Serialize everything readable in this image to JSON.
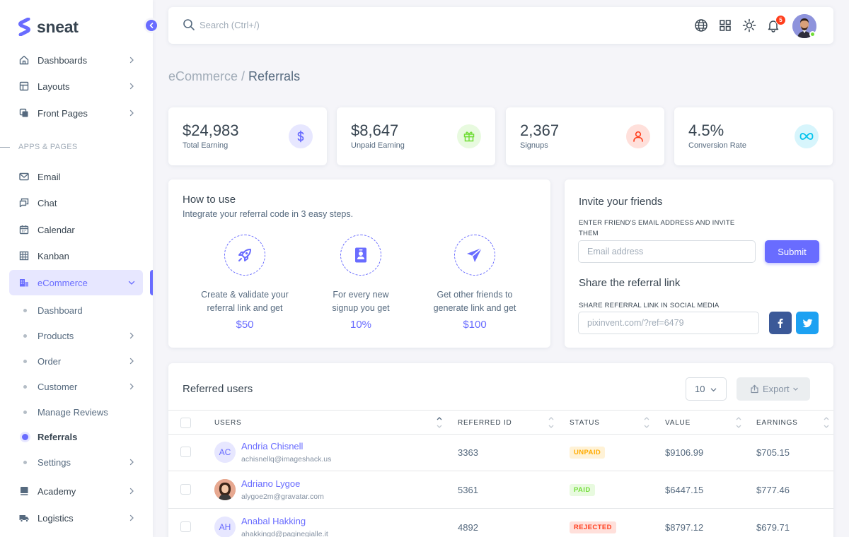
{
  "brand": {
    "name": "sneat"
  },
  "sidebar": {
    "top_items": [
      {
        "label": "Dashboards",
        "icon": "home-icon"
      },
      {
        "label": "Layouts",
        "icon": "layout-icon"
      },
      {
        "label": "Front Pages",
        "icon": "copy-icon"
      }
    ],
    "section_header": "APPS & PAGES",
    "app_items": [
      {
        "label": "Email",
        "icon": "mail-icon"
      },
      {
        "label": "Chat",
        "icon": "chat-icon"
      },
      {
        "label": "Calendar",
        "icon": "calendar-icon"
      },
      {
        "label": "Kanban",
        "icon": "grid-icon"
      }
    ],
    "ecommerce": {
      "label": "eCommerce",
      "icon": "store-icon"
    },
    "ecommerce_sub": [
      {
        "label": "Dashboard"
      },
      {
        "label": "Products"
      },
      {
        "label": "Order"
      },
      {
        "label": "Customer"
      },
      {
        "label": "Manage Reviews"
      },
      {
        "label": "Referrals"
      },
      {
        "label": "Settings"
      }
    ],
    "bottom_items": [
      {
        "label": "Academy",
        "icon": "book-icon"
      },
      {
        "label": "Logistics",
        "icon": "truck-icon"
      }
    ]
  },
  "navbar": {
    "search_placeholder": "Search (Ctrl+/)",
    "notification_count": "5"
  },
  "breadcrumb": {
    "parent": "eCommerce /",
    "current": "Referrals"
  },
  "stats": [
    {
      "value": "$24,983",
      "label": "Total Earning",
      "icon": "dollar-icon",
      "color": "#696cff",
      "bg": "#e7e7ff"
    },
    {
      "value": "$8,647",
      "label": "Unpaid Earning",
      "icon": "gift-icon",
      "color": "#71dd37",
      "bg": "#e8fadf"
    },
    {
      "value": "2,367",
      "label": "Signups",
      "icon": "user-icon",
      "color": "#ff3e1d",
      "bg": "#ffe0db"
    },
    {
      "value": "4.5%",
      "label": "Conversion Rate",
      "icon": "infinity-icon",
      "color": "#03c3ec",
      "bg": "#d7f5fc"
    }
  ],
  "how_to_use": {
    "title": "How to use",
    "subtitle": "Integrate your referral code in 3 easy steps.",
    "steps": [
      {
        "line1": "Create & validate your",
        "line2": "referral link and get",
        "amount": "$50",
        "icon": "rocket-icon"
      },
      {
        "line1": "For every new",
        "line2": "signup you get",
        "amount": "10%",
        "icon": "id-card-icon"
      },
      {
        "line1": "Get other friends to",
        "line2": "generate link and get",
        "amount": "$100",
        "icon": "send-icon"
      }
    ]
  },
  "invite": {
    "title": "Invite your friends",
    "email_label_line1": "ENTER FRIEND'S EMAIL ADDRESS AND INVITE",
    "email_label_line2": "THEM",
    "email_placeholder": "Email address",
    "submit_label": "Submit",
    "share_title": "Share the referral link",
    "share_label": "SHARE REFERRAL LINK IN SOCIAL MEDIA",
    "link_placeholder": "pixinvent.com/?ref=6479"
  },
  "table": {
    "title": "Referred users",
    "page_size": "10",
    "export_label": "Export",
    "columns": {
      "users": "USERS",
      "referred_id": "REFERRED ID",
      "status": "STATUS",
      "value": "VALUE",
      "earnings": "EARNINGS"
    },
    "rows": [
      {
        "initials": "AC",
        "name": "Andria Chisnell",
        "email": "achisnellq@imageshack.us",
        "referred_id": "3363",
        "status": "UNPAID",
        "status_color": "#ffab00",
        "status_bg": "#fff2d6",
        "value": "$9106.99",
        "earnings": "$705.15"
      },
      {
        "initials": "",
        "name": "Adriano Lygoe",
        "email": "alygoe2m@gravatar.com",
        "referred_id": "5361",
        "status": "PAID",
        "status_color": "#71dd37",
        "status_bg": "#e8fadf",
        "value": "$6447.15",
        "earnings": "$777.46"
      },
      {
        "initials": "AH",
        "name": "Anabal Hakking",
        "email": "ahakkingd@paginegialle.it",
        "referred_id": "4892",
        "status": "REJECTED",
        "status_color": "#ff3e1d",
        "status_bg": "#ffe0db",
        "value": "$8797.12",
        "earnings": "$679.71"
      }
    ]
  }
}
